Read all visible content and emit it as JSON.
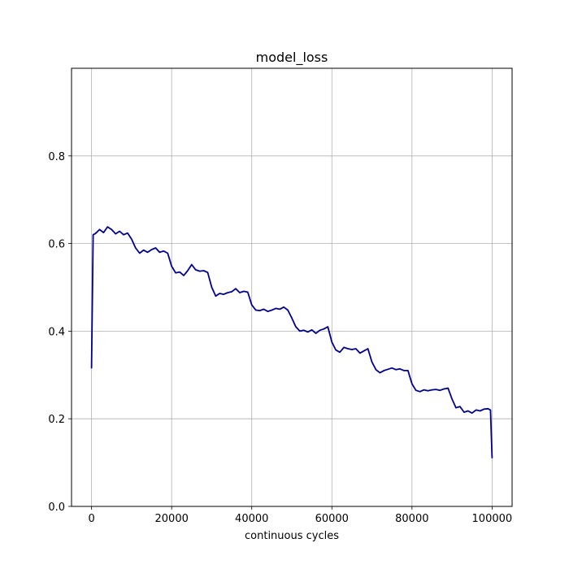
{
  "chart_data": {
    "type": "line",
    "title": "model_loss",
    "xlabel": "continuous cycles",
    "ylabel": "",
    "xlim": [
      -5000,
      105000
    ],
    "ylim": [
      0.0,
      1.0
    ],
    "xticks": [
      0,
      20000,
      40000,
      60000,
      80000,
      100000
    ],
    "xtick_labels": [
      "0",
      "20000",
      "40000",
      "60000",
      "80000",
      "100000"
    ],
    "yticks": [
      0.0,
      0.2,
      0.4,
      0.6,
      0.8
    ],
    "ytick_labels": [
      "0.0",
      "0.2",
      "0.4",
      "0.6",
      "0.8"
    ],
    "grid": true,
    "series": [
      {
        "color": "#00008b",
        "x": [
          0,
          400,
          1000,
          2000,
          3000,
          4000,
          5000,
          6000,
          7000,
          8000,
          9000,
          10000,
          11000,
          12000,
          13000,
          14000,
          15000,
          16000,
          17000,
          18000,
          19000,
          20000,
          21000,
          22000,
          23000,
          24000,
          25000,
          26000,
          27000,
          28000,
          29000,
          30000,
          31000,
          32000,
          33000,
          34000,
          35000,
          36000,
          37000,
          38000,
          39000,
          40000,
          41000,
          42000,
          43000,
          44000,
          45000,
          46000,
          47000,
          48000,
          49000,
          50000,
          51000,
          52000,
          53000,
          54000,
          55000,
          56000,
          57000,
          58000,
          59000,
          60000,
          61000,
          62000,
          63000,
          64000,
          65000,
          66000,
          67000,
          68000,
          69000,
          70000,
          71000,
          72000,
          73000,
          74000,
          75000,
          76000,
          77000,
          78000,
          79000,
          80000,
          81000,
          82000,
          83000,
          84000,
          85000,
          86000,
          87000,
          88000,
          89000,
          90000,
          91000,
          92000,
          93000,
          94000,
          95000,
          96000,
          97000,
          98000,
          99000,
          99600,
          100000
        ],
        "y": [
          0.315,
          0.62,
          0.623,
          0.632,
          0.625,
          0.638,
          0.632,
          0.622,
          0.628,
          0.62,
          0.624,
          0.61,
          0.59,
          0.578,
          0.585,
          0.58,
          0.586,
          0.59,
          0.58,
          0.583,
          0.578,
          0.548,
          0.533,
          0.535,
          0.527,
          0.538,
          0.552,
          0.54,
          0.537,
          0.538,
          0.534,
          0.5,
          0.48,
          0.486,
          0.484,
          0.488,
          0.49,
          0.497,
          0.488,
          0.491,
          0.489,
          0.46,
          0.448,
          0.447,
          0.45,
          0.445,
          0.448,
          0.452,
          0.45,
          0.455,
          0.448,
          0.43,
          0.41,
          0.4,
          0.402,
          0.398,
          0.403,
          0.395,
          0.402,
          0.405,
          0.41,
          0.375,
          0.357,
          0.352,
          0.363,
          0.36,
          0.358,
          0.36,
          0.35,
          0.355,
          0.36,
          0.33,
          0.312,
          0.305,
          0.31,
          0.313,
          0.316,
          0.312,
          0.314,
          0.31,
          0.31,
          0.28,
          0.265,
          0.262,
          0.266,
          0.264,
          0.266,
          0.267,
          0.265,
          0.268,
          0.27,
          0.245,
          0.225,
          0.228,
          0.215,
          0.218,
          0.213,
          0.22,
          0.218,
          0.222,
          0.223,
          0.22,
          0.11
        ]
      }
    ]
  }
}
